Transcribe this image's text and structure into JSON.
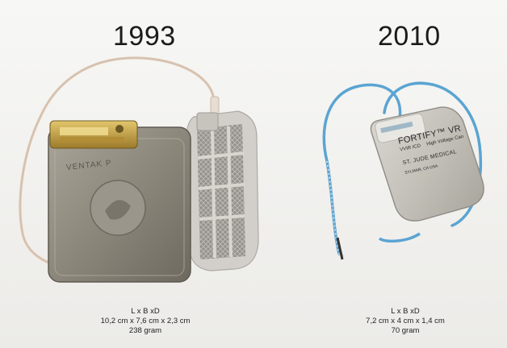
{
  "left": {
    "year": "1993",
    "device_label": "VENTAK P",
    "dimensions_header": "L x B xD",
    "dimensions": "10,2 cm x 7,6 cm x 2,3 cm",
    "weight": "238 gram"
  },
  "right": {
    "year": "2010",
    "brand": "FORTIFY™ VR",
    "model": "VVIR ICD",
    "tag": "High Voltage Can",
    "maker": "ST. JUDE MEDICAL",
    "origin": "SYLMAR, CA  USA",
    "dimensions_header": "L x B xD",
    "dimensions": "7,2 cm x 4 cm x 1,4 cm",
    "weight": "70 gram"
  }
}
